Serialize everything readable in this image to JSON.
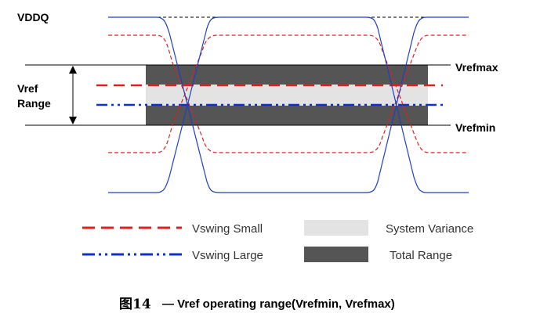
{
  "labels": {
    "vddq": "VDDQ",
    "vref_line1": "Vref",
    "vref_line2": "Range",
    "vrefmax": "Vrefmax",
    "vrefmin": "Vrefmin"
  },
  "legend": {
    "vswing_small": "Vswing Small",
    "vswing_large": "Vswing Large",
    "system_variance": "System Variance",
    "total_range": "Total Range"
  },
  "caption": {
    "figure": "图14",
    "text": "— Vref operating range(Vrefmin, Vrefmax)"
  },
  "colors": {
    "red_dashed": "#e02020",
    "blue_dashdot": "#1030c8",
    "total_range": "#555555",
    "system_variance": "#e3e3e3",
    "waveform": "#2040c0"
  }
}
